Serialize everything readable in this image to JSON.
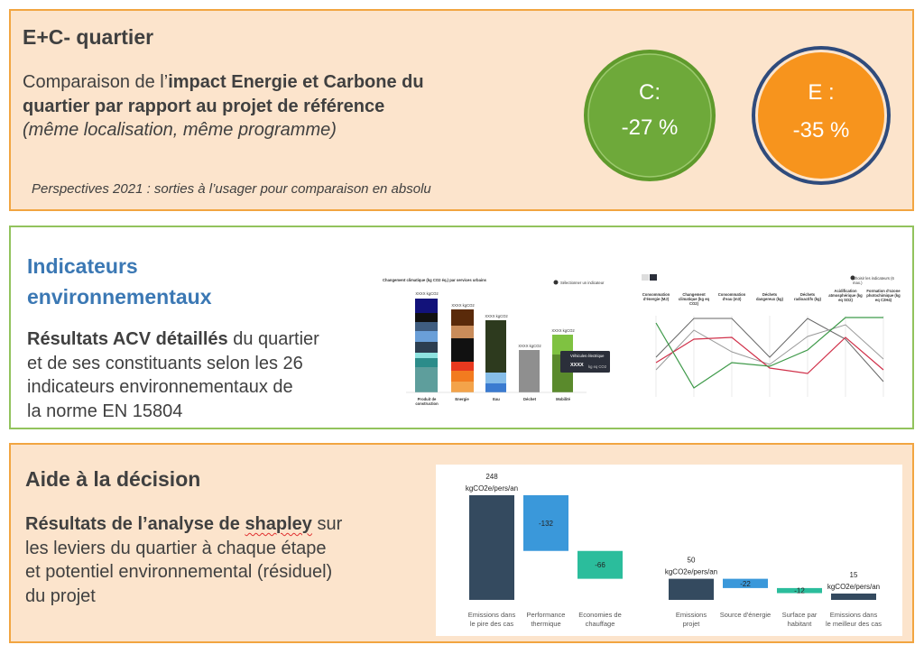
{
  "header": {
    "title": "E+C- quartier",
    "intro": [
      "Comparaison de l’",
      "impact Energie et Carbone du",
      "quartier par rapport au projet de référence",
      "(même localisation, même programme)"
    ],
    "note": "Perspectives 2021 : sorties à l’usager pour comparaison en absolu",
    "badges": [
      {
        "label": "C:",
        "value": "-27 %"
      },
      {
        "label": "E :",
        "value": "-35 %"
      }
    ]
  },
  "indicators": {
    "title": [
      "Indicateurs",
      "environnementaux"
    ],
    "body": [
      "Résultats ACV détaillés",
      " du quartier",
      "et de ses constituants selon les 26",
      "indicateurs environnementaux de",
      "la norme EN 15804"
    ],
    "bars_thumbnail": {
      "title": "Changement climatique (kg CO2 éq.) par services urbains",
      "button": "Sélectionner un indicateur",
      "bar_label": "XXXX kgCO2",
      "categories": [
        "Produit de construction",
        "Energie",
        "Eau",
        "Déchet",
        "Mobilité"
      ],
      "tooltip": [
        "Véhicules électrique",
        "XXXX",
        "kg eq CO2"
      ]
    },
    "lines_thumbnail": {
      "button": "Choisir les indicateurs (6 max.)",
      "axes": [
        "Consommation d'énergie (MJ)",
        "Changement climatique (kg eq CO2)",
        "Consommation d'eau (m3)",
        "Déchets dangereux (kg)",
        "Déchets radioactifs (kg)",
        "Acidification atmosphérique (kg eq SO2)",
        "Formation d'ozone photochimique (kg eq C2H4)"
      ]
    }
  },
  "decision": {
    "title": "Aide à la décision",
    "body": [
      "Résultats de l’analyse de ",
      "shapley",
      " sur",
      "les leviers du quartier à chaque étape",
      "et potentiel environnemental (résiduel)",
      "du projet"
    ],
    "waterfall": {
      "type": "waterfall",
      "unit": "kgCO2e/pers/an",
      "categories": [
        [
          "Emissions dans",
          "le pire des cas"
        ],
        [
          "Performance",
          "thermique"
        ],
        [
          "Economies de",
          "chauffage"
        ],
        [
          "Emissions",
          "projet"
        ],
        [
          "Source d'énergie"
        ],
        [
          "Surface par",
          "habitant"
        ],
        [
          "Emissions dans",
          "le meilleur des cas"
        ]
      ],
      "values": [
        248,
        -132,
        -66,
        50,
        -22,
        -12,
        15
      ],
      "colors": [
        "#344a5f",
        "#3a98da",
        "#2bbd9c",
        "#344a5f",
        "#3a98da",
        "#2bbd9c",
        "#344a5f"
      ]
    }
  }
}
